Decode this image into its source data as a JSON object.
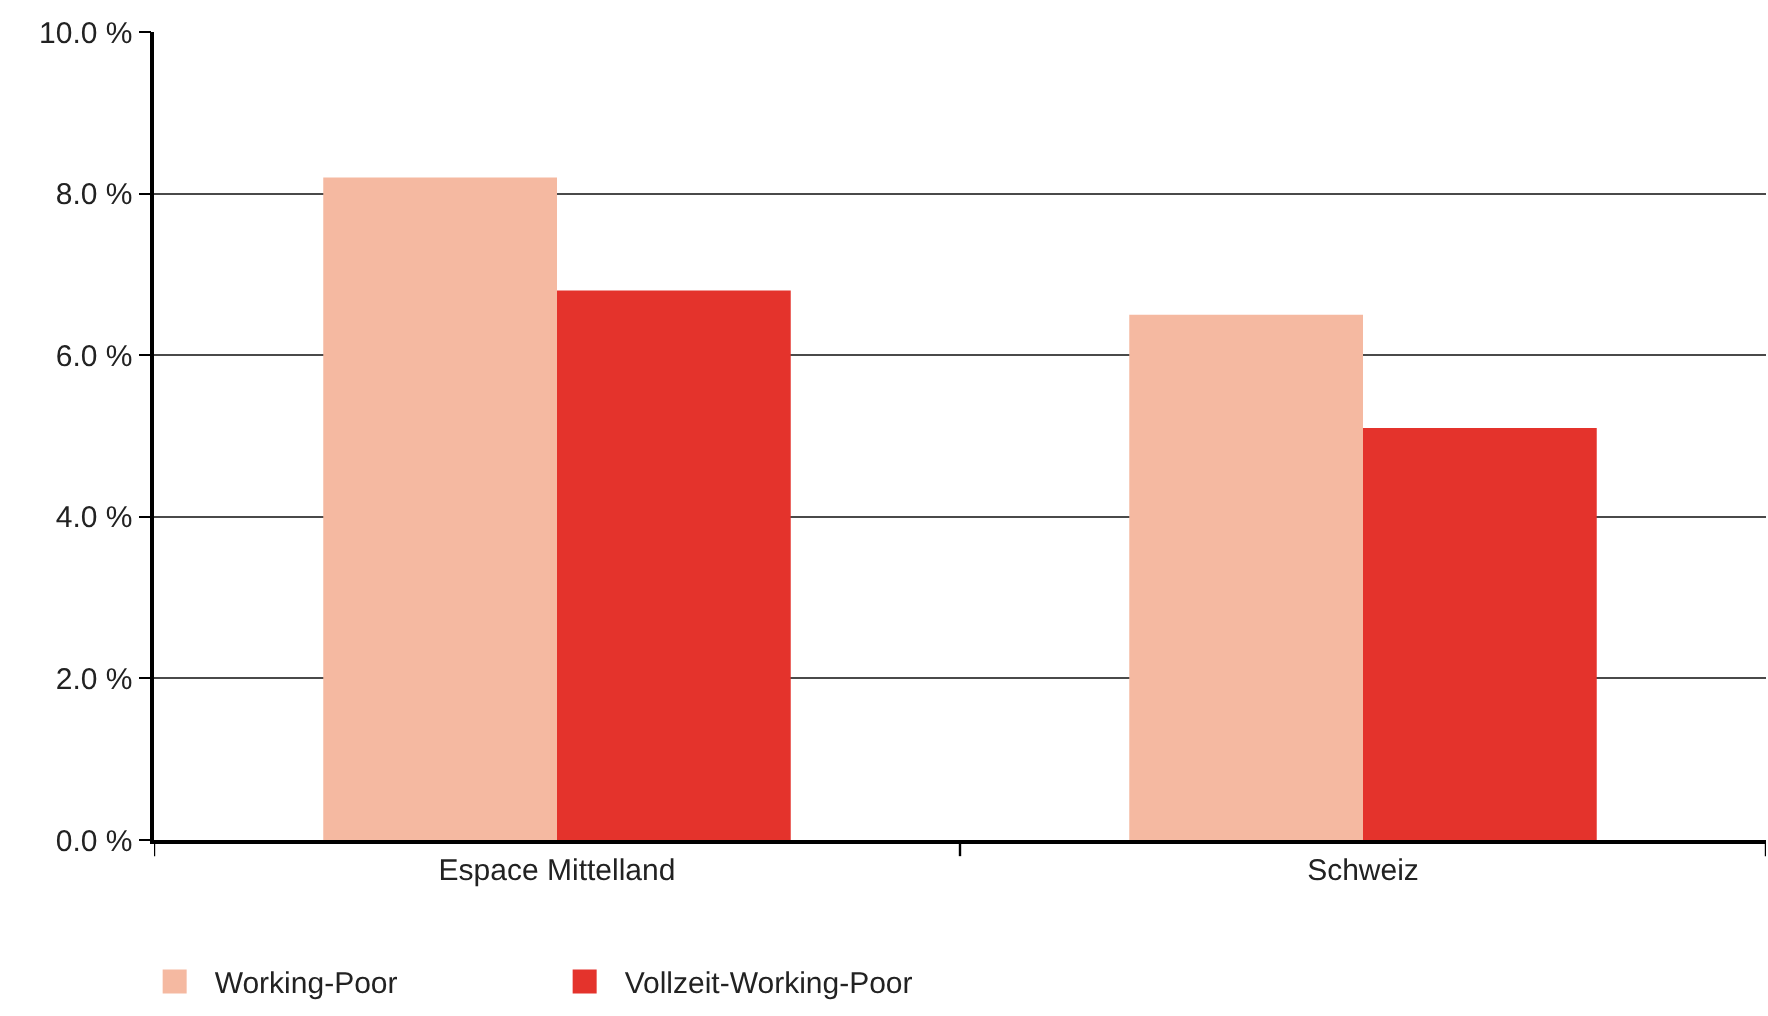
{
  "chart_data": {
    "type": "bar",
    "categories": [
      "Espace Mittelland",
      "Schweiz"
    ],
    "series": [
      {
        "name": "Working-Poor",
        "color": "#f5b9a1",
        "values": [
          8.2,
          6.5
        ]
      },
      {
        "name": "Vollzeit-Working-Poor",
        "color": "#e4332c",
        "values": [
          6.8,
          5.1
        ]
      }
    ],
    "ylim": [
      0,
      10
    ],
    "yticks": [
      {
        "value": 0,
        "label": "0.0 %"
      },
      {
        "value": 2,
        "label": "2.0 %"
      },
      {
        "value": 4,
        "label": "4.0 %"
      },
      {
        "value": 6,
        "label": "6.0 %"
      },
      {
        "value": 8,
        "label": "8.0 %"
      },
      {
        "value": 10,
        "label": "10.0 %"
      }
    ],
    "grid": "y",
    "legend": "bottom left"
  }
}
